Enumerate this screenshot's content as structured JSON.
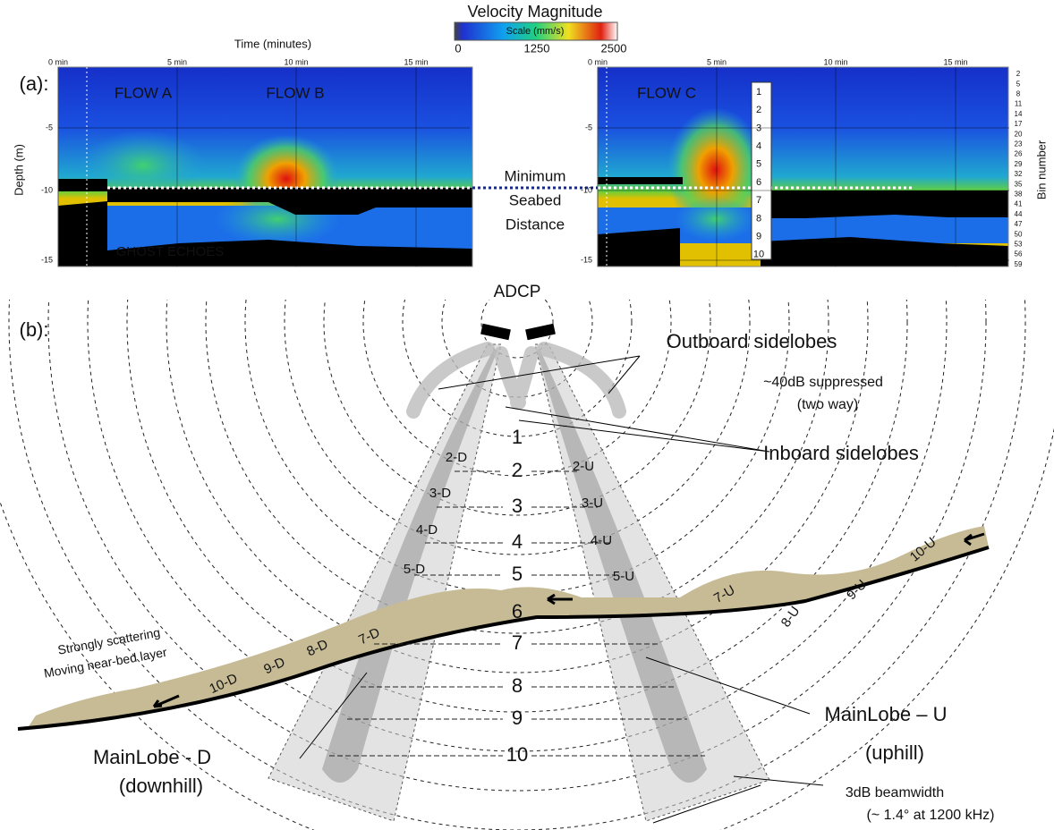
{
  "panel_a": {
    "label": "(a):",
    "colorbar": {
      "title": "Velocity Magnitude",
      "scale": "Scale (mm/s)",
      "ticks": [
        "0",
        "1250",
        "2500"
      ]
    },
    "x_axis_title": "Time (minutes)",
    "y_axis_title": "Depth (m)",
    "y2_axis_title": "Bin number",
    "left_plot": {
      "x_ticks": [
        "0 min",
        "5 min",
        "10 min",
        "15 min"
      ],
      "y_ticks": [
        "-5",
        "-10",
        "-15"
      ],
      "annotations": [
        "FLOW A",
        "FLOW B",
        "GHOST ECHOES"
      ]
    },
    "right_plot": {
      "x_ticks": [
        "0 min",
        "5 min",
        "10 min",
        "15 min"
      ],
      "y_ticks": [
        "-5",
        "-10",
        "-15"
      ],
      "annotations": [
        "FLOW C"
      ],
      "bin_numbers": [
        "2",
        "5",
        "8",
        "11",
        "14",
        "17",
        "20",
        "23",
        "26",
        "29",
        "32",
        "35",
        "38",
        "41",
        "44",
        "47",
        "50",
        "53",
        "56",
        "59"
      ]
    },
    "bin_box": [
      "1",
      "2",
      "3",
      "4",
      "5",
      "6",
      "7",
      "8",
      "9",
      "10"
    ],
    "seabed_label": [
      "Minimum",
      "Seabed",
      "Distance"
    ]
  },
  "panel_b": {
    "label": "(b):",
    "device": "ADCP",
    "outboard": "Outboard sidelobes",
    "suppressed": [
      "~40dB suppressed",
      "(two way)"
    ],
    "inboard": "Inboard sidelobes",
    "ranges": [
      "1",
      "2",
      "3",
      "4",
      "5",
      "6",
      "7",
      "8",
      "9",
      "10"
    ],
    "downhill_bins": [
      "2-D",
      "3-D",
      "4-D",
      "5-D",
      "7-D",
      "8-D",
      "9-D",
      "10-D"
    ],
    "uphill_bins": [
      "2-U",
      "3-U",
      "4-U",
      "5-U",
      "7-U",
      "8-U",
      "9-U",
      "10-U"
    ],
    "layer": [
      "Strongly scattering",
      "Moving near-bed layer"
    ],
    "mainlobe_d": [
      "MainLobe - D",
      "(downhill)"
    ],
    "mainlobe_u": [
      "MainLobe – U",
      "(uphill)"
    ],
    "beamwidth": [
      "3dB beamwidth",
      "(~ 1.4° at 1200 kHz)"
    ]
  }
}
